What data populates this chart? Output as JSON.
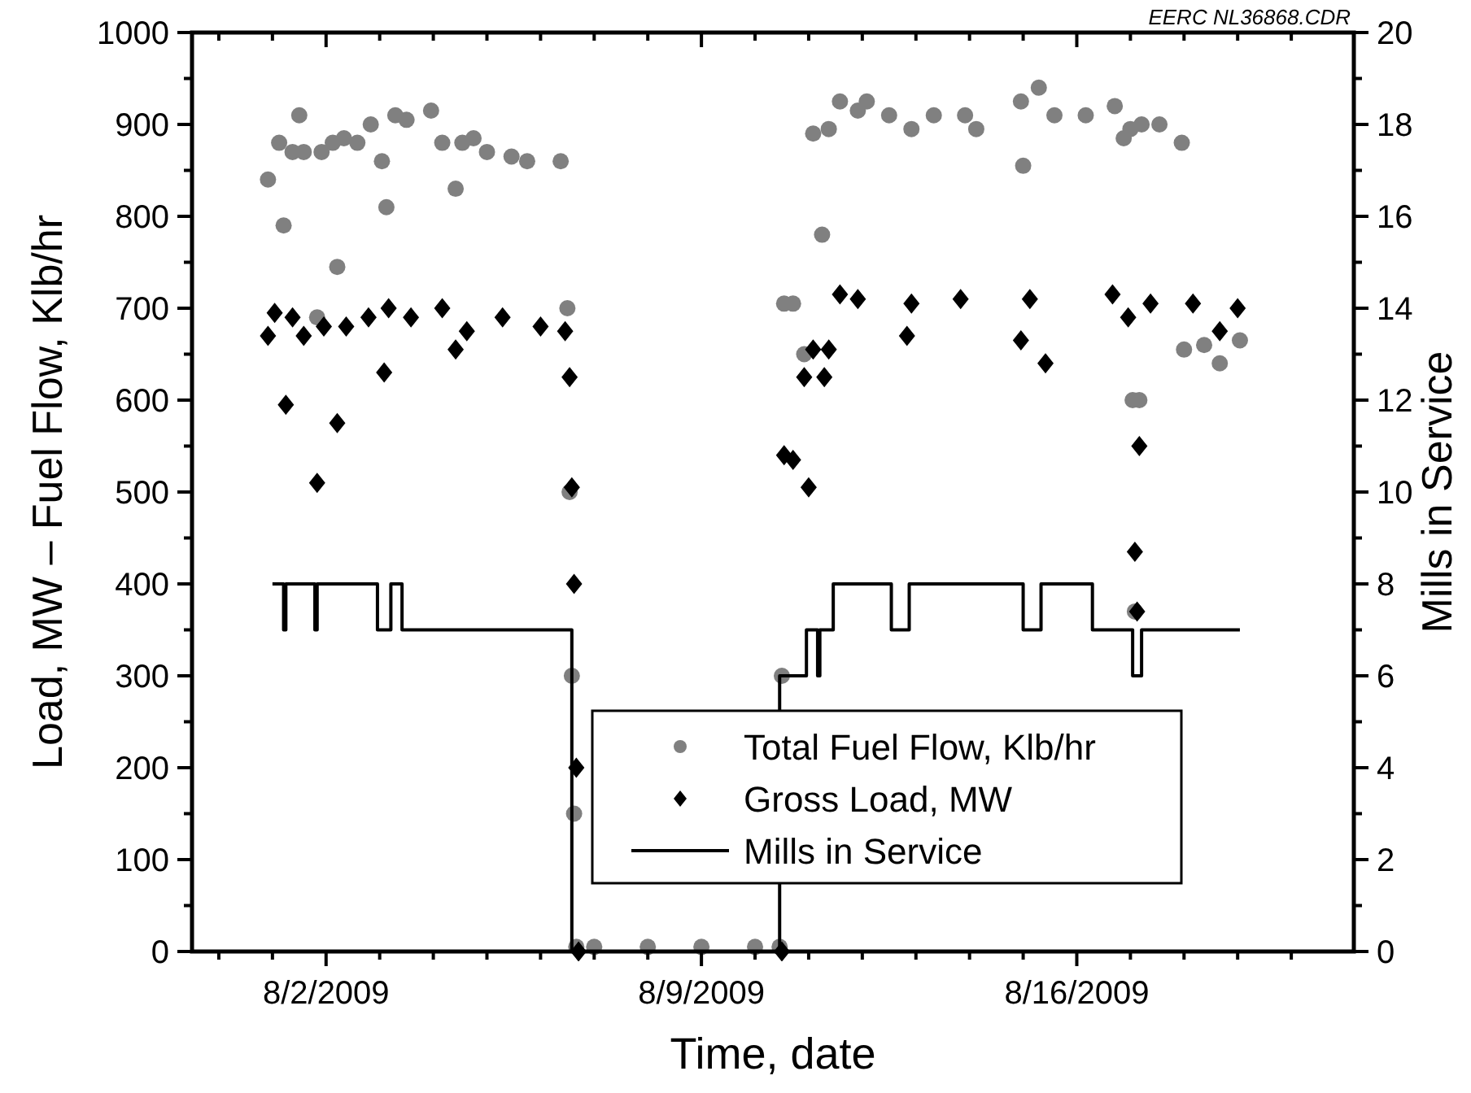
{
  "chart_data": {
    "type": "scatter",
    "xlabel": "Time, date",
    "ylabel": "Load, MW – Fuel Flow, Klb/hr",
    "y2label": "Mills in Service",
    "annotations": [
      "EERC NL36868.CDR"
    ],
    "xlim": [
      "2009-07-30T12:00",
      "2009-08-21T04:00"
    ],
    "xticks": [
      {
        "value": "2009-07-31",
        "label": null
      },
      {
        "value": "2009-08-01",
        "label": null
      },
      {
        "value": "2009-08-02",
        "label": "8/2/2009"
      },
      {
        "value": "2009-08-03",
        "label": null
      },
      {
        "value": "2009-08-04",
        "label": null
      },
      {
        "value": "2009-08-05",
        "label": null
      },
      {
        "value": "2009-08-06",
        "label": null
      },
      {
        "value": "2009-08-07",
        "label": null
      },
      {
        "value": "2009-08-08",
        "label": null
      },
      {
        "value": "2009-08-09",
        "label": "8/9/2009"
      },
      {
        "value": "2009-08-10",
        "label": null
      },
      {
        "value": "2009-08-11",
        "label": null
      },
      {
        "value": "2009-08-12",
        "label": null
      },
      {
        "value": "2009-08-13",
        "label": null
      },
      {
        "value": "2009-08-14",
        "label": null
      },
      {
        "value": "2009-08-15",
        "label": null
      },
      {
        "value": "2009-08-16",
        "label": "8/16/2009"
      },
      {
        "value": "2009-08-17",
        "label": null
      },
      {
        "value": "2009-08-18",
        "label": null
      },
      {
        "value": "2009-08-19",
        "label": null
      },
      {
        "value": "2009-08-20",
        "label": null
      }
    ],
    "ylim": [
      0,
      1000
    ],
    "yticks": [
      0,
      {
        "value": 50,
        "label": null
      },
      100,
      {
        "value": 150,
        "label": null
      },
      200,
      {
        "value": 250,
        "label": null
      },
      300,
      {
        "value": 350,
        "label": null
      },
      400,
      {
        "value": 450,
        "label": null
      },
      500,
      {
        "value": 550,
        "label": null
      },
      600,
      {
        "value": 650,
        "label": null
      },
      700,
      {
        "value": 750,
        "label": null
      },
      800,
      {
        "value": 850,
        "label": null
      },
      900,
      {
        "value": 950,
        "label": null
      },
      1000
    ],
    "y2lim": [
      0,
      20
    ],
    "y2ticks": [
      0,
      {
        "value": 1,
        "label": null
      },
      2,
      {
        "value": 3,
        "label": null
      },
      4,
      {
        "value": 5,
        "label": null
      },
      6,
      {
        "value": 7,
        "label": null
      },
      8,
      {
        "value": 9,
        "label": null
      },
      10,
      {
        "value": 11,
        "label": null
      },
      12,
      {
        "value": 13,
        "label": null
      },
      14,
      {
        "value": 15,
        "label": null
      },
      16,
      {
        "value": 17,
        "label": null
      },
      18,
      {
        "value": 19,
        "label": null
      },
      20
    ],
    "grid": false,
    "legend": "bottom",
    "series": [
      {
        "name": "Total Fuel Flow, Klb/hr",
        "marker": "circle",
        "color": "#808080",
        "x": [
          "2009-07-31T22:00",
          "2009-08-01T03:00",
          "2009-08-01T05:00",
          "2009-08-01T09:00",
          "2009-08-01T12:00",
          "2009-08-01T14:00",
          "2009-08-01T20:00",
          "2009-08-01T22:00",
          "2009-08-02T03:00",
          "2009-08-02T05:00",
          "2009-08-02T08:00",
          "2009-08-02T14:00",
          "2009-08-02T20:00",
          "2009-08-03T01:00",
          "2009-08-03T03:00",
          "2009-08-03T07:00",
          "2009-08-03T12:00",
          "2009-08-03T23:00",
          "2009-08-04T04:00",
          "2009-08-04T10:00",
          "2009-08-04T13:00",
          "2009-08-04T18:00",
          "2009-08-05T00:00",
          "2009-08-05T11:00",
          "2009-08-05T18:00",
          "2009-08-06T09:00",
          "2009-08-06T12:00",
          "2009-08-06T13:00",
          "2009-08-06T14:00",
          "2009-08-06T15:00",
          "2009-08-06T16:00",
          "2009-08-07T00:00",
          "2009-08-08T00:00",
          "2009-08-09T00:00",
          "2009-08-10T00:00",
          "2009-08-10T11:00",
          "2009-08-10T12:00",
          "2009-08-10T13:00",
          "2009-08-10T17:00",
          "2009-08-10T22:00",
          "2009-08-11T02:00",
          "2009-08-11T06:00",
          "2009-08-11T09:00",
          "2009-08-11T14:00",
          "2009-08-11T22:00",
          "2009-08-12T02:00",
          "2009-08-12T12:00",
          "2009-08-12T22:00",
          "2009-08-13T08:00",
          "2009-08-13T22:00",
          "2009-08-14T03:00",
          "2009-08-14T23:00",
          "2009-08-15T00:00",
          "2009-08-15T07:00",
          "2009-08-15T14:00",
          "2009-08-16T04:00",
          "2009-08-16T17:00",
          "2009-08-16T21:00",
          "2009-08-17T00:00",
          "2009-08-17T01:00",
          "2009-08-17T02:00",
          "2009-08-17T04:00",
          "2009-08-17T05:00",
          "2009-08-17T13:00",
          "2009-08-17T23:00",
          "2009-08-18T00:00",
          "2009-08-18T09:00",
          "2009-08-18T16:00",
          "2009-08-19T01:00"
        ],
        "values": [
          840,
          880,
          790,
          870,
          910,
          870,
          690,
          870,
          880,
          745,
          885,
          880,
          900,
          860,
          810,
          910,
          905,
          915,
          880,
          830,
          880,
          885,
          870,
          865,
          860,
          860,
          700,
          500,
          300,
          150,
          5,
          5,
          5,
          5,
          5,
          5,
          300,
          705,
          705,
          650,
          890,
          780,
          895,
          925,
          915,
          925,
          910,
          895,
          910,
          910,
          895,
          925,
          855,
          940,
          910,
          910,
          920,
          885,
          895,
          600,
          370,
          600,
          900,
          900,
          880,
          655,
          660,
          640,
          665
        ]
      },
      {
        "name": "Gross Load, MW",
        "marker": "diamond",
        "color": "#000000",
        "x": [
          "2009-07-31T22:00",
          "2009-08-01T01:00",
          "2009-08-01T06:00",
          "2009-08-01T09:00",
          "2009-08-01T14:00",
          "2009-08-01T20:00",
          "2009-08-01T23:00",
          "2009-08-02T05:00",
          "2009-08-02T09:00",
          "2009-08-02T19:00",
          "2009-08-03T02:00",
          "2009-08-03T04:00",
          "2009-08-03T14:00",
          "2009-08-04T04:00",
          "2009-08-04T10:00",
          "2009-08-04T15:00",
          "2009-08-05T07:00",
          "2009-08-06T00:00",
          "2009-08-06T11:00",
          "2009-08-06T13:00",
          "2009-08-06T14:00",
          "2009-08-06T15:00",
          "2009-08-06T16:00",
          "2009-08-06T17:00",
          "2009-08-10T12:00",
          "2009-08-10T13:00",
          "2009-08-10T17:00",
          "2009-08-10T22:00",
          "2009-08-11T00:00",
          "2009-08-11T02:00",
          "2009-08-11T07:00",
          "2009-08-11T09:00",
          "2009-08-11T14:00",
          "2009-08-11T22:00",
          "2009-08-12T20:00",
          "2009-08-12T22:00",
          "2009-08-13T20:00",
          "2009-08-14T23:00",
          "2009-08-15T03:00",
          "2009-08-15T10:00",
          "2009-08-16T16:00",
          "2009-08-16T23:00",
          "2009-08-17T02:00",
          "2009-08-17T03:00",
          "2009-08-17T04:00",
          "2009-08-17T09:00",
          "2009-08-18T04:00",
          "2009-08-18T16:00",
          "2009-08-19T00:00"
        ],
        "values": [
          670,
          695,
          595,
          690,
          670,
          510,
          680,
          575,
          680,
          690,
          630,
          700,
          690,
          700,
          655,
          675,
          690,
          680,
          675,
          625,
          505,
          400,
          200,
          0,
          0,
          540,
          535,
          625,
          505,
          655,
          625,
          655,
          715,
          710,
          670,
          705,
          710,
          665,
          710,
          640,
          715,
          690,
          435,
          370,
          550,
          705,
          705,
          675,
          700
        ]
      },
      {
        "name": "Mills in Service",
        "type": "step",
        "marker": "none",
        "axis": "y2",
        "color": "#000000",
        "x": [
          "2009-08-01T00:00",
          "2009-08-01T05:00",
          "2009-08-01T06:00",
          "2009-08-01T19:00",
          "2009-08-01T20:00",
          "2009-08-02T23:00",
          "2009-08-03T05:00",
          "2009-08-03T10:00",
          "2009-08-06T14:00",
          "2009-08-10T11:00",
          "2009-08-10T23:00",
          "2009-08-11T04:00",
          "2009-08-11T05:00",
          "2009-08-11T11:00",
          "2009-08-12T13:00",
          "2009-08-12T21:00",
          "2009-08-15T00:00",
          "2009-08-15T08:00",
          "2009-08-16T07:00",
          "2009-08-17T01:00",
          "2009-08-17T05:00",
          "2009-08-19T01:00"
        ],
        "values": [
          8,
          7,
          8,
          7,
          8,
          7,
          8,
          7,
          0,
          6,
          7,
          6,
          7,
          8,
          7,
          8,
          7,
          8,
          7,
          6,
          7,
          7
        ]
      }
    ]
  }
}
